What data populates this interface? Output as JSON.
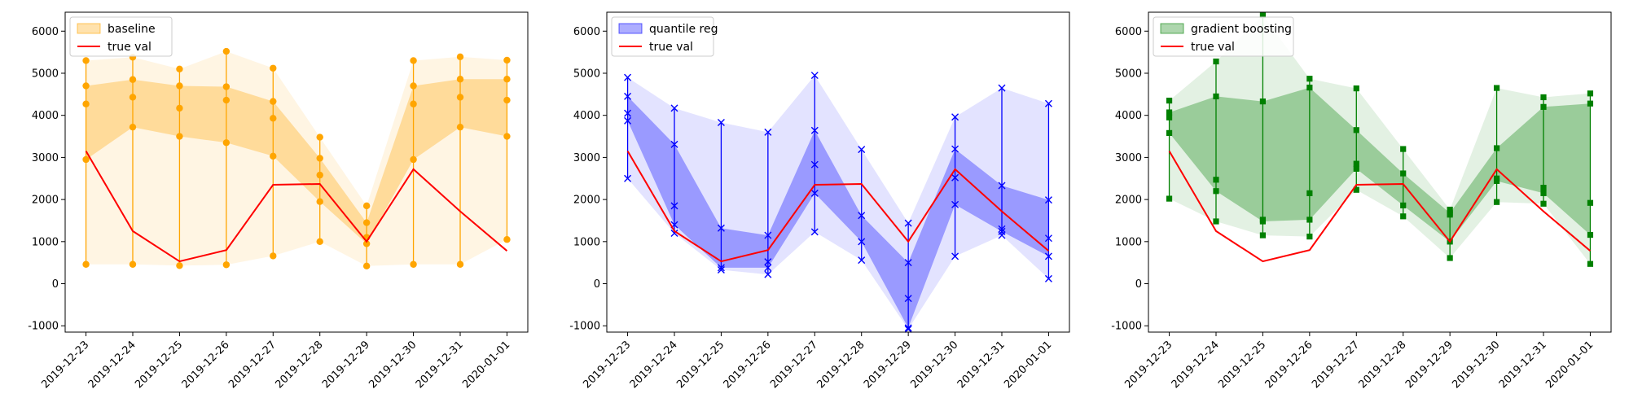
{
  "chart_data": [
    {
      "type": "line",
      "title": "",
      "xlabel": "",
      "ylabel": "",
      "x": [
        "2019-12-23",
        "2019-12-24",
        "2019-12-25",
        "2019-12-26",
        "2019-12-27",
        "2019-12-28",
        "2019-12-29",
        "2019-12-30",
        "2019-12-31",
        "2020-01-01"
      ],
      "ylim": [
        -1150,
        6450
      ],
      "yticks": [
        -1000,
        0,
        1000,
        2000,
        3000,
        4000,
        5000,
        6000
      ],
      "legend_position": "top-left",
      "grid": false,
      "band_name": "baseline",
      "true_name": "true val",
      "color": "#ffa500",
      "true_color": "#ff0000",
      "marker": "circle",
      "true_val": [
        3150,
        1250,
        530,
        800,
        2350,
        2370,
        1000,
        2720,
        1720,
        780
      ],
      "outer_band": {
        "lower": [
          460,
          460,
          430,
          450,
          660,
          1000,
          420,
          460,
          460,
          1050
        ],
        "upper": [
          5300,
          5380,
          5100,
          5520,
          5120,
          3480,
          1850,
          5300,
          5390,
          5310
        ]
      },
      "inner_band": {
        "lower": [
          2950,
          3720,
          3500,
          3350,
          3030,
          1950,
          950,
          2950,
          3720,
          3500
        ],
        "upper": [
          4700,
          4850,
          4700,
          4680,
          4330,
          2980,
          1450,
          4700,
          4860,
          4860
        ]
      },
      "points": [
        [
          460,
          2950,
          4270,
          4700,
          5300
        ],
        [
          460,
          3720,
          4430,
          4850,
          5380
        ],
        [
          430,
          3500,
          4170,
          4700,
          5100
        ],
        [
          450,
          3350,
          4360,
          4680,
          5520
        ],
        [
          660,
          3030,
          3930,
          4330,
          5120
        ],
        [
          1000,
          1950,
          2580,
          2980,
          3480
        ],
        [
          420,
          950,
          1100,
          1450,
          1850
        ],
        [
          460,
          2950,
          4270,
          4700,
          5300
        ],
        [
          460,
          3720,
          4430,
          4860,
          5390
        ],
        [
          1050,
          3500,
          4360,
          4860,
          5310
        ]
      ]
    },
    {
      "type": "line",
      "title": "",
      "xlabel": "",
      "ylabel": "",
      "x": [
        "2019-12-23",
        "2019-12-24",
        "2019-12-25",
        "2019-12-26",
        "2019-12-27",
        "2019-12-28",
        "2019-12-29",
        "2019-12-30",
        "2019-12-31",
        "2020-01-01"
      ],
      "ylim": [
        -1150,
        6450
      ],
      "yticks": [
        -1000,
        0,
        1000,
        2000,
        3000,
        4000,
        5000,
        6000
      ],
      "legend_position": "top-left",
      "grid": false,
      "band_name": "quantile reg",
      "true_name": "true val",
      "color": "#0000ff",
      "true_color": "#ff0000",
      "marker": "x",
      "true_val": [
        3150,
        1250,
        530,
        800,
        2350,
        2370,
        1000,
        2720,
        1720,
        780
      ],
      "outer_band": {
        "lower": [
          2500,
          1200,
          330,
          220,
          1230,
          560,
          -1080,
          650,
          1150,
          120
        ],
        "upper": [
          4900,
          4170,
          3830,
          3600,
          4950,
          3190,
          1440,
          3960,
          4650,
          4280
        ]
      },
      "inner_band": {
        "lower": [
          3870,
          1400,
          380,
          380,
          2150,
          1000,
          -1050,
          1880,
          1240,
          650
        ],
        "upper": [
          4450,
          3310,
          1320,
          1150,
          3640,
          1620,
          500,
          3200,
          2330,
          1990
        ]
      },
      "points": [
        [
          2500,
          3870,
          4050,
          4450,
          4900
        ],
        [
          1200,
          1400,
          1850,
          3310,
          4170
        ],
        [
          330,
          380,
          1320,
          3830
        ],
        [
          220,
          380,
          520,
          1150,
          3600
        ],
        [
          1230,
          2150,
          2830,
          3640,
          4950
        ],
        [
          560,
          1000,
          1620,
          3190
        ],
        [
          -1080,
          -1050,
          -350,
          500,
          1440
        ],
        [
          650,
          1880,
          2520,
          3200,
          3960
        ],
        [
          1150,
          1240,
          1300,
          2330,
          4650
        ],
        [
          120,
          650,
          1080,
          1990,
          4280
        ]
      ]
    },
    {
      "type": "line",
      "title": "",
      "xlabel": "",
      "ylabel": "",
      "x": [
        "2019-12-23",
        "2019-12-24",
        "2019-12-25",
        "2019-12-26",
        "2019-12-27",
        "2019-12-28",
        "2019-12-29",
        "2019-12-30",
        "2019-12-31",
        "2020-01-01"
      ],
      "ylim": [
        -1150,
        6450
      ],
      "yticks": [
        -1000,
        0,
        1000,
        2000,
        3000,
        4000,
        5000,
        6000
      ],
      "legend_position": "top-left",
      "grid": false,
      "band_name": "gradient boosting",
      "true_name": "true val",
      "color": "#008000",
      "true_color": "#ff0000",
      "marker": "square",
      "true_val": [
        3150,
        1250,
        530,
        800,
        2350,
        2370,
        1000,
        2720,
        1720,
        780
      ],
      "outer_band": {
        "lower": [
          2020,
          1480,
          1150,
          1120,
          2230,
          1600,
          610,
          1940,
          1900,
          470
        ],
        "upper": [
          4350,
          5280,
          6380,
          4870,
          4640,
          3200,
          1760,
          4650,
          4430,
          4520
        ]
      },
      "inner_band": {
        "lower": [
          3580,
          2200,
          1480,
          1520,
          2730,
          1860,
          1000,
          2440,
          2150,
          1160
        ],
        "upper": [
          4070,
          4450,
          4330,
          4660,
          3650,
          2620,
          1680,
          3220,
          4200,
          4280
        ]
      },
      "points": [
        [
          2020,
          3580,
          3950,
          4070,
          4350
        ],
        [
          1480,
          2200,
          2470,
          4450,
          5280
        ],
        [
          1150,
          1480,
          1520,
          4330,
          6380
        ],
        [
          1120,
          1520,
          2150,
          4660,
          4870
        ],
        [
          2230,
          2730,
          2850,
          3650,
          4640
        ],
        [
          1600,
          1860,
          2620,
          3200
        ],
        [
          610,
          1000,
          1640,
          1680,
          1760
        ],
        [
          1940,
          2440,
          2500,
          3220,
          4650
        ],
        [
          1900,
          2150,
          2280,
          4200,
          4430
        ],
        [
          470,
          1160,
          1920,
          4280,
          4520
        ]
      ]
    }
  ]
}
